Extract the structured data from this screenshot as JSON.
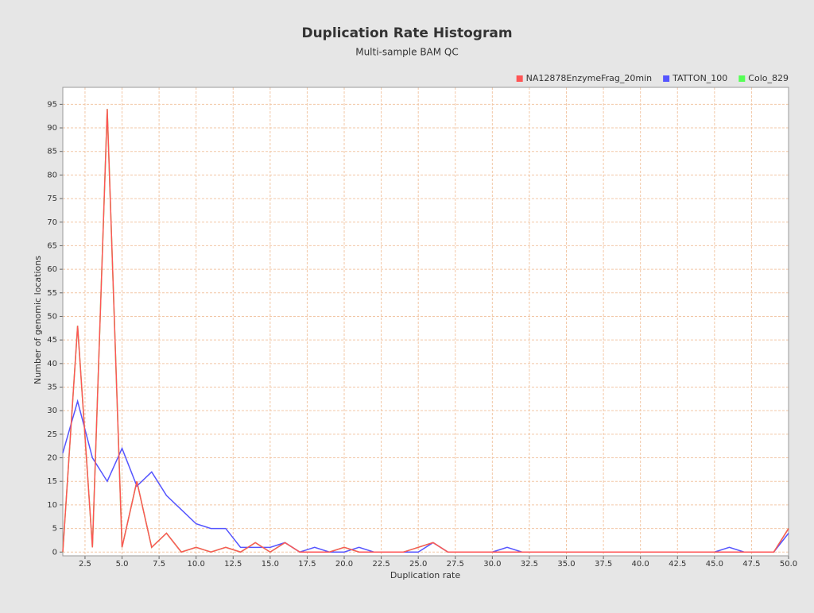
{
  "chart_data": {
    "type": "line",
    "title": "Duplication Rate Histogram",
    "subtitle": "Multi-sample BAM QC",
    "xlabel": "Duplication rate",
    "ylabel": "Number of genomic locations",
    "x": [
      1,
      2,
      3,
      4,
      5,
      6,
      7,
      8,
      9,
      10,
      11,
      12,
      13,
      14,
      15,
      16,
      17,
      18,
      19,
      20,
      21,
      22,
      23,
      24,
      25,
      26,
      27,
      28,
      29,
      30,
      31,
      32,
      33,
      34,
      35,
      36,
      37,
      38,
      39,
      40,
      41,
      42,
      43,
      44,
      45,
      46,
      47,
      48,
      49,
      50
    ],
    "series": [
      {
        "name": "Colo_829",
        "color": "#55ff55",
        "values": [
          0,
          48,
          1,
          94,
          1,
          15,
          1,
          4,
          0,
          1,
          0,
          1,
          0,
          2,
          0,
          2,
          0,
          0,
          0,
          1,
          0,
          0,
          0,
          0,
          1,
          2,
          0,
          0,
          0,
          0,
          0,
          0,
          0,
          0,
          0,
          0,
          0,
          0,
          0,
          0,
          0,
          0,
          0,
          0,
          0,
          0,
          0,
          0,
          0,
          5
        ]
      },
      {
        "name": "TATTON_100",
        "color": "#5555ff",
        "values": [
          21,
          32,
          20,
          15,
          22,
          14,
          17,
          12,
          9,
          6,
          5,
          5,
          1,
          1,
          1,
          2,
          0,
          1,
          0,
          0,
          1,
          0,
          0,
          0,
          0,
          2,
          0,
          0,
          0,
          0,
          1,
          0,
          0,
          0,
          0,
          0,
          0,
          0,
          0,
          0,
          0,
          0,
          0,
          0,
          0,
          1,
          0,
          0,
          0,
          4
        ]
      },
      {
        "name": "NA12878EnzymeFrag_20min",
        "color": "#ff5555",
        "values": [
          0,
          48,
          1,
          94,
          1,
          15,
          1,
          4,
          0,
          1,
          0,
          1,
          0,
          2,
          0,
          2,
          0,
          0,
          0,
          1,
          0,
          0,
          0,
          0,
          1,
          2,
          0,
          0,
          0,
          0,
          0,
          0,
          0,
          0,
          0,
          0,
          0,
          0,
          0,
          0,
          0,
          0,
          0,
          0,
          0,
          0,
          0,
          0,
          0,
          5
        ]
      }
    ],
    "legend_order": [
      "NA12878EnzymeFrag_20min",
      "TATTON_100",
      "Colo_829"
    ],
    "xlim": [
      1,
      50
    ],
    "xticks": [
      2.5,
      {
        "value": 5,
        "label": "5.0"
      },
      7.5,
      {
        "value": 10,
        "label": "10.0"
      },
      12.5,
      {
        "value": 15,
        "label": "15.0"
      },
      17.5,
      {
        "value": 20,
        "label": "20.0"
      },
      22.5,
      {
        "value": 25,
        "label": "25.0"
      },
      27.5,
      {
        "value": 30,
        "label": "30.0"
      },
      32.5,
      {
        "value": 35,
        "label": "35.0"
      },
      37.5,
      {
        "value": 40,
        "label": "40.0"
      },
      42.5,
      {
        "value": 45,
        "label": "45.0"
      },
      47.5,
      {
        "value": 50,
        "label": "50.0"
      }
    ],
    "ylim": [
      -0.8,
      98.6
    ],
    "yticks": [
      0,
      5,
      10,
      15,
      20,
      25,
      30,
      35,
      40,
      45,
      50,
      55,
      60,
      65,
      70,
      75,
      80,
      85,
      90,
      95
    ],
    "grid": true,
    "legend_position": "top-right"
  }
}
